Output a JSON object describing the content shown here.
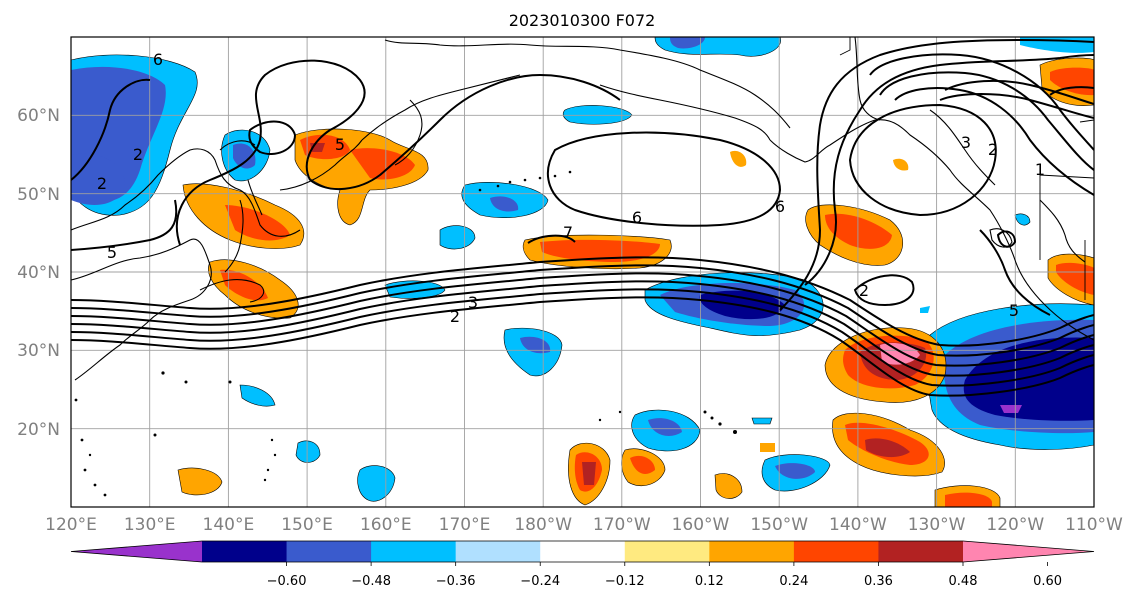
{
  "title": "2023010300 F072",
  "map": {
    "lon_ticks": [
      "120°E",
      "130°E",
      "140°E",
      "150°E",
      "160°E",
      "170°E",
      "180°W",
      "170°W",
      "160°W",
      "150°W",
      "140°W",
      "130°W",
      "120°W",
      "110°W"
    ],
    "lat_ticks": [
      "60°N",
      "50°N",
      "40°N",
      "30°N",
      "20°N"
    ],
    "lon_range": [
      120,
      250
    ],
    "lat_range": [
      10,
      70
    ],
    "grid": true,
    "contour_labels": [
      "6",
      "2",
      "5",
      "5",
      "2",
      "6",
      "7",
      "6",
      "2",
      "3",
      "2",
      "3",
      "2",
      "1",
      "5"
    ]
  },
  "colorbar": {
    "ticks": [
      "−0.60",
      "−0.48",
      "−0.36",
      "−0.24",
      "−0.12",
      "0.12",
      "0.24",
      "0.36",
      "0.48",
      "0.60"
    ],
    "colors": [
      "#9932cc",
      "#00008b",
      "#3a5bcd",
      "#00bfff",
      "#b0e0ff",
      "#ffffff",
      "#ffea80",
      "#ffa500",
      "#ff4500",
      "#b22222",
      "#ff85b0"
    ],
    "extend": "both"
  }
}
